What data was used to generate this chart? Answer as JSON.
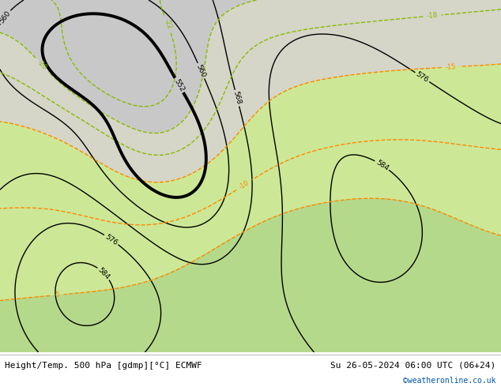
{
  "title_left": "Height/Temp. 500 hPa [gdmp][°C] ECMWF",
  "title_right": "Su 26-05-2024 06:00 UTC (06+24)",
  "credit": "©weatheronline.co.uk",
  "fig_width": 6.34,
  "fig_height": 4.9,
  "dpi": 100,
  "land_green": "#b5d98a",
  "land_grey": "#c8c8c8",
  "ocean_grey": "#d0d0d0",
  "font_size_bottom": 8,
  "font_size_credit": 7,
  "bottom_text_color": "#000000",
  "credit_color": "#0055aa",
  "geo_color": "#000000",
  "geo_thick_level": 552,
  "geo_thick_lw": 2.8,
  "geo_thin_lw": 1.0,
  "geo_levels": [
    536,
    544,
    552,
    560,
    568,
    576,
    584,
    588
  ],
  "temp_cyan_color": "#00bbdd",
  "temp_orange_color": "#ff8800",
  "temp_green_color": "#88bb00",
  "temp_lw": 1.0,
  "lon_min": -35,
  "lon_max": 55,
  "lat_min": 27,
  "lat_max": 77
}
